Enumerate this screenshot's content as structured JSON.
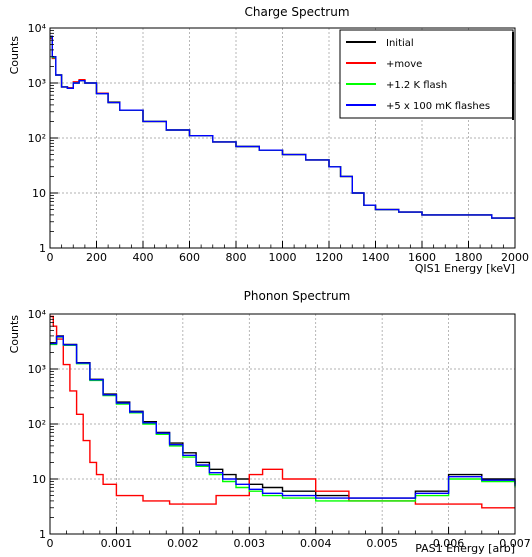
{
  "chart_data": [
    {
      "type": "line",
      "title": "Charge Spectrum",
      "xlabel": "QIS1 Energy [keV]",
      "ylabel": "Counts",
      "xlim": [
        0,
        2000
      ],
      "ylim": [
        1,
        10000
      ],
      "yscale": "log",
      "grid": true,
      "legend_position": "top-right",
      "x_ticks": [
        0,
        200,
        400,
        600,
        800,
        1000,
        1200,
        1400,
        1600,
        1800,
        2000
      ],
      "y_ticks": [
        1,
        10,
        100,
        1000,
        10000
      ],
      "y_tick_labels": [
        "1",
        "10",
        "10²",
        "10³",
        "10⁴"
      ],
      "series": [
        {
          "name": "Initial",
          "color": "#000000",
          "x": [
            0,
            10,
            25,
            50,
            75,
            100,
            125,
            150,
            200,
            250,
            300,
            400,
            500,
            600,
            700,
            800,
            900,
            1000,
            1100,
            1200,
            1250,
            1300,
            1350,
            1400,
            1500,
            1600,
            1700,
            1800,
            1900,
            2000
          ],
          "y": [
            7000,
            3000,
            1400,
            850,
            800,
            1000,
            1100,
            1000,
            650,
            450,
            320,
            200,
            140,
            110,
            85,
            70,
            60,
            50,
            40,
            30,
            20,
            10,
            6,
            5,
            4.5,
            4,
            4,
            4,
            3.5,
            3.5
          ]
        },
        {
          "name": "+move",
          "color": "#ff0000",
          "x": [
            0,
            10,
            25,
            50,
            75,
            100,
            125,
            150,
            200,
            250,
            300,
            400,
            500,
            600,
            700,
            800,
            900,
            1000,
            1100,
            1200,
            1250,
            1300,
            1350,
            1400,
            1500,
            1600,
            1700,
            1800,
            1900,
            2000
          ],
          "y": [
            6500,
            2800,
            1400,
            850,
            820,
            1050,
            1150,
            1000,
            650,
            440,
            320,
            200,
            140,
            110,
            85,
            70,
            60,
            50,
            40,
            30,
            20,
            10,
            6,
            5,
            4.5,
            4,
            4,
            4,
            3.5,
            3.5
          ]
        },
        {
          "name": "+1.2 K flash",
          "color": "#00ff00",
          "x": [
            0,
            10,
            25,
            50,
            75,
            100,
            125,
            150,
            200,
            250,
            300,
            400,
            500,
            600,
            700,
            800,
            900,
            1000,
            1100,
            1200,
            1250,
            1300,
            1350,
            1400,
            1500,
            1600,
            1700,
            1800,
            1900,
            2000
          ],
          "y": [
            6800,
            2900,
            1400,
            850,
            800,
            1000,
            1100,
            1000,
            640,
            440,
            320,
            200,
            140,
            110,
            85,
            70,
            60,
            50,
            40,
            30,
            20,
            10,
            6,
            5,
            4.5,
            4,
            4,
            4,
            3.5,
            3.5
          ]
        },
        {
          "name": "+5 x 100 mK flashes",
          "color": "#0000ff",
          "x": [
            0,
            10,
            25,
            50,
            75,
            100,
            125,
            150,
            200,
            250,
            300,
            400,
            500,
            600,
            700,
            800,
            900,
            1000,
            1100,
            1200,
            1250,
            1300,
            1350,
            1400,
            1500,
            1600,
            1700,
            1800,
            1900,
            2000
          ],
          "y": [
            7000,
            3000,
            1400,
            850,
            800,
            1000,
            1100,
            1000,
            640,
            440,
            320,
            200,
            140,
            110,
            85,
            70,
            60,
            50,
            40,
            30,
            20,
            10,
            6,
            5,
            4.5,
            4,
            4,
            4,
            3.5,
            3.5
          ]
        }
      ]
    },
    {
      "type": "line",
      "title": "Phonon Spectrum",
      "xlabel": "PAS1 Energy [arb]",
      "ylabel": "Counts",
      "xlim": [
        0,
        0.007
      ],
      "ylim": [
        1,
        10000
      ],
      "yscale": "log",
      "grid": true,
      "x_ticks": [
        0,
        0.001,
        0.002,
        0.003,
        0.004,
        0.005,
        0.006,
        0.007
      ],
      "x_tick_labels": [
        "0",
        "0.001",
        "0.002",
        "0.003",
        "0.004",
        "0.005",
        "0.006",
        "0.007"
      ],
      "y_ticks": [
        1,
        10,
        100,
        1000,
        10000
      ],
      "y_tick_labels": [
        "1",
        "10",
        "10²",
        "10³",
        "10⁴"
      ],
      "series": [
        {
          "name": "Initial",
          "color": "#000000",
          "x": [
            0,
            0.0001,
            0.0002,
            0.0004,
            0.0006,
            0.0008,
            0.001,
            0.0012,
            0.0014,
            0.0016,
            0.0018,
            0.002,
            0.0022,
            0.0024,
            0.0026,
            0.0028,
            0.003,
            0.0032,
            0.0035,
            0.004,
            0.0045,
            0.005,
            0.0055,
            0.006,
            0.0065,
            0.007
          ],
          "y": [
            3000,
            4000,
            2800,
            1300,
            650,
            350,
            250,
            170,
            110,
            70,
            45,
            30,
            20,
            15,
            12,
            10,
            8,
            7,
            6,
            5,
            4.5,
            4.5,
            6,
            12,
            10,
            8
          ]
        },
        {
          "name": "+move",
          "color": "#ff0000",
          "x": [
            0,
            5e-05,
            0.0001,
            0.0002,
            0.0003,
            0.0004,
            0.0005,
            0.0006,
            0.0007,
            0.0008,
            0.001,
            0.0012,
            0.0014,
            0.0016,
            0.0018,
            0.002,
            0.0025,
            0.003,
            0.0032,
            0.0035,
            0.004,
            0.0045,
            0.005,
            0.0055,
            0.006,
            0.0065,
            0.007
          ],
          "y": [
            9000,
            6000,
            3500,
            1200,
            400,
            150,
            50,
            20,
            12,
            8,
            5,
            5,
            4,
            4,
            3.5,
            3.5,
            5,
            12,
            15,
            10,
            6,
            4,
            4,
            3.5,
            3.5,
            3,
            3
          ]
        },
        {
          "name": "+1.2 K flash",
          "color": "#00ff00",
          "x": [
            0,
            0.0001,
            0.0002,
            0.0004,
            0.0006,
            0.0008,
            0.001,
            0.0012,
            0.0014,
            0.0016,
            0.0018,
            0.002,
            0.0022,
            0.0024,
            0.0026,
            0.0028,
            0.003,
            0.0032,
            0.0035,
            0.004,
            0.0045,
            0.005,
            0.0055,
            0.006,
            0.0065,
            0.007
          ],
          "y": [
            2800,
            3800,
            2700,
            1250,
            620,
            330,
            230,
            160,
            100,
            65,
            40,
            25,
            17,
            12,
            9,
            7,
            6,
            5,
            4.5,
            4,
            4,
            4,
            5,
            10,
            9,
            7
          ]
        },
        {
          "name": "+5 x 100 mK flashes",
          "color": "#0000ff",
          "x": [
            0,
            0.0001,
            0.0002,
            0.0004,
            0.0006,
            0.0008,
            0.001,
            0.0012,
            0.0014,
            0.0016,
            0.0018,
            0.002,
            0.0022,
            0.0024,
            0.0026,
            0.0028,
            0.003,
            0.0032,
            0.0035,
            0.004,
            0.0045,
            0.005,
            0.0055,
            0.006,
            0.0065,
            0.007
          ],
          "y": [
            2900,
            3900,
            2750,
            1280,
            640,
            340,
            240,
            165,
            105,
            68,
            42,
            27,
            18,
            13,
            10,
            8,
            6.5,
            5.5,
            5,
            4.5,
            4.5,
            4.5,
            5.5,
            11,
            9.5,
            7.5
          ]
        }
      ]
    }
  ]
}
